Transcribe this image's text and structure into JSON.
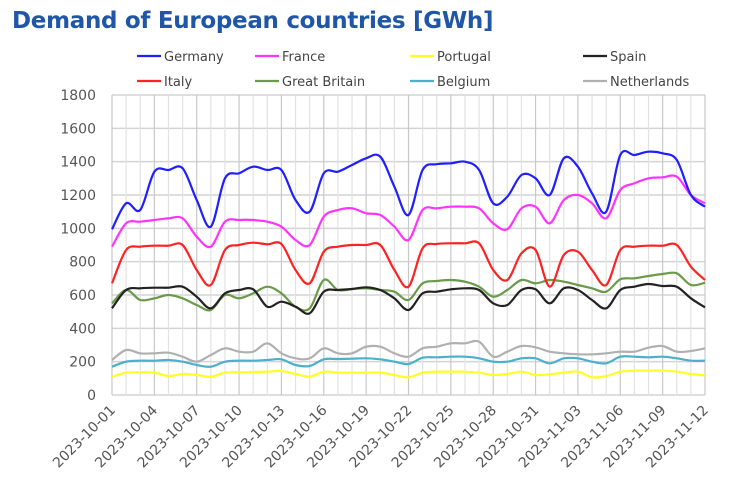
{
  "chart_data": {
    "type": "line",
    "title": "Demand of European countries [GWh]",
    "xlabel": "",
    "ylabel": "",
    "ylim": [
      0,
      1800
    ],
    "yticks": [
      0,
      200,
      400,
      600,
      800,
      1000,
      1200,
      1400,
      1600,
      1800
    ],
    "x_start": "2023-10-01",
    "x_end": "2023-11-12",
    "xtick_labels": [
      "2023-10-01",
      "2023-10-04",
      "2023-10-07",
      "2023-10-10",
      "2023-10-13",
      "2023-10-16",
      "2023-10-19",
      "2023-10-22",
      "2023-10-25",
      "2023-10-28",
      "2023-10-31",
      "2023-11-03",
      "2023-11-06",
      "2023-11-09",
      "2023-11-12"
    ],
    "grid": true,
    "legend_position": "top",
    "series": [
      {
        "name": "Germany",
        "color": "#1f1fff",
        "values": [
          994,
          1150,
          1110,
          1340,
          1350,
          1360,
          1170,
          1010,
          1300,
          1330,
          1370,
          1350,
          1350,
          1170,
          1100,
          1330,
          1340,
          1380,
          1420,
          1430,
          1250,
          1080,
          1350,
          1385,
          1390,
          1400,
          1350,
          1150,
          1190,
          1320,
          1300,
          1200,
          1420,
          1370,
          1210,
          1100,
          1440,
          1440,
          1460,
          1450,
          1410,
          1200,
          1130
        ]
      },
      {
        "name": "France",
        "color": "#ff33ff",
        "values": [
          890,
          1030,
          1040,
          1050,
          1060,
          1060,
          950,
          890,
          1040,
          1050,
          1050,
          1040,
          1010,
          930,
          900,
          1070,
          1110,
          1120,
          1090,
          1080,
          1010,
          930,
          1110,
          1120,
          1130,
          1130,
          1120,
          1030,
          995,
          1120,
          1130,
          1030,
          1170,
          1200,
          1150,
          1060,
          1230,
          1270,
          1300,
          1306,
          1310,
          1200,
          1150
        ]
      },
      {
        "name": "Portugal",
        "color": "#ffff22",
        "values": [
          110,
          134,
          136,
          134,
          114,
          126,
          120,
          110,
          134,
          136,
          138,
          140,
          144,
          126,
          110,
          140,
          134,
          134,
          134,
          134,
          120,
          106,
          134,
          140,
          140,
          140,
          134,
          120,
          126,
          140,
          120,
          124,
          134,
          140,
          106,
          114,
          140,
          146,
          146,
          146,
          140,
          126,
          118
        ]
      },
      {
        "name": "Spain",
        "color": "#222222",
        "values": [
          520,
          630,
          640,
          644,
          644,
          650,
          590,
          520,
          610,
          630,
          634,
          530,
          560,
          530,
          490,
          620,
          630,
          636,
          646,
          630,
          580,
          510,
          610,
          620,
          634,
          640,
          630,
          550,
          540,
          630,
          634,
          550,
          640,
          630,
          570,
          520,
          630,
          650,
          666,
          654,
          650,
          580,
          526
        ]
      },
      {
        "name": "Italy",
        "color": "#ff2222",
        "values": [
          670,
          870,
          890,
          896,
          896,
          900,
          750,
          660,
          870,
          900,
          914,
          904,
          906,
          750,
          670,
          860,
          890,
          900,
          900,
          900,
          750,
          650,
          880,
          906,
          910,
          910,
          910,
          750,
          690,
          850,
          870,
          650,
          840,
          860,
          750,
          660,
          870,
          890,
          896,
          896,
          900,
          770,
          690
        ]
      },
      {
        "name": "Great Britain",
        "color": "#6a9a4a",
        "values": [
          550,
          630,
          570,
          580,
          600,
          580,
          540,
          510,
          600,
          580,
          610,
          650,
          610,
          530,
          520,
          690,
          630,
          636,
          640,
          630,
          620,
          570,
          670,
          684,
          690,
          680,
          650,
          590,
          630,
          690,
          670,
          690,
          680,
          660,
          640,
          620,
          694,
          700,
          714,
          726,
          730,
          660,
          674
        ]
      },
      {
        "name": "Belgium",
        "color": "#4ab0cc",
        "values": [
          170,
          200,
          206,
          206,
          210,
          200,
          180,
          170,
          200,
          206,
          206,
          210,
          214,
          180,
          174,
          214,
          216,
          218,
          220,
          214,
          200,
          186,
          224,
          226,
          230,
          230,
          220,
          200,
          200,
          220,
          220,
          190,
          220,
          220,
          200,
          190,
          230,
          230,
          226,
          230,
          220,
          206,
          206
        ]
      },
      {
        "name": "Netherlands",
        "color": "#b0b0b0",
        "values": [
          210,
          270,
          250,
          250,
          254,
          230,
          200,
          240,
          280,
          260,
          260,
          310,
          250,
          220,
          220,
          280,
          250,
          250,
          290,
          290,
          250,
          230,
          280,
          290,
          310,
          310,
          320,
          230,
          260,
          294,
          286,
          260,
          250,
          244,
          244,
          250,
          260,
          260,
          284,
          294,
          260,
          264,
          280
        ]
      }
    ]
  }
}
